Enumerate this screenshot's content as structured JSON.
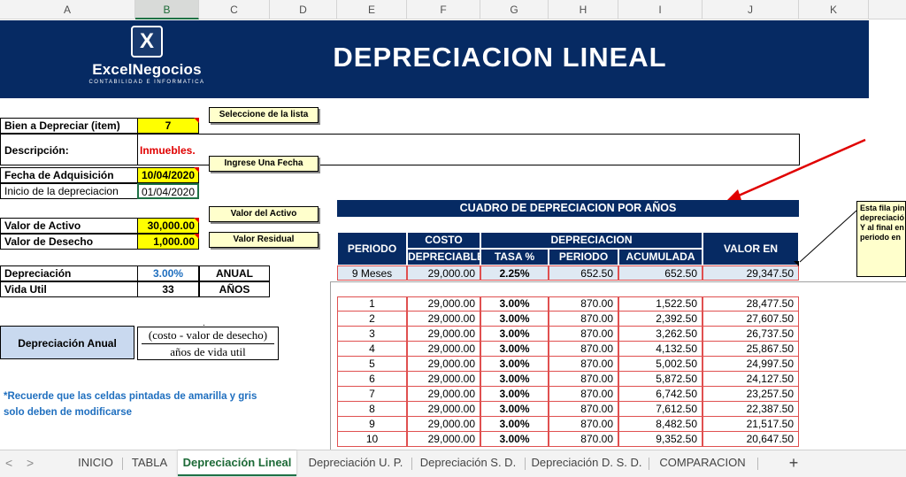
{
  "columns": [
    "A",
    "B",
    "C",
    "D",
    "E",
    "F",
    "G",
    "H",
    "I",
    "J",
    "K"
  ],
  "banner": {
    "logo_symbol": "X",
    "logo_name": "ExcelNegocios",
    "logo_subtitle": "CONTABILIDAD E INFORMATICA",
    "title": "DEPRECIACION LINEAL"
  },
  "inputs": {
    "bien_label": "Bien a Depreciar (item)",
    "bien_value": "7",
    "descripcion_label": "Descripción:",
    "descripcion_value": "Inmuebles.",
    "fecha_label": "Fecha de Adquisición",
    "fecha_value": "10/04/2020",
    "inicio_label": "Inicio de la depreciacion",
    "inicio_value": "01/04/2020",
    "valor_activo_label": "Valor de Activo",
    "valor_activo_value": "30,000.00",
    "valor_desecho_label": "Valor de Desecho",
    "valor_desecho_value": "1,000.00",
    "depreciacion_label": "Depreciación",
    "depreciacion_value": "3.00%",
    "depreciacion_unit": "ANUAL",
    "vida_label": "Vida Util",
    "vida_value": "33",
    "vida_unit": "AÑOS"
  },
  "tips": {
    "lista": "Seleccione de la lista",
    "fecha": "Ingrese Una Fecha",
    "activo": "Valor del Activo",
    "residual": "Valor Residual"
  },
  "formula": {
    "label": "Depreciación Anual",
    "numerator": "(costo - valor de desecho)",
    "denominator": "años de vida util"
  },
  "note": {
    "line1": "*Recuerde que las celdas pintadas de amarilla y gris",
    "line2": "solo deben de modificarse"
  },
  "table": {
    "title": "CUADRO DE DEPRECIACION POR AÑOS",
    "headers": {
      "periodo": "PERIODO",
      "costo": "COSTO",
      "depreciable": "DEPRECIABLE",
      "depreciacion": "DEPRECIACION",
      "tasa": "TASA %",
      "periodo_sub": "PERIODO",
      "acumulada": "ACUMULADA",
      "valor_libros": "VALOR EN LIBROS"
    },
    "first_row": [
      "9 Meses",
      "29,000.00",
      "2.25%",
      "652.50",
      "652.50",
      "29,347.50"
    ],
    "rows": [
      [
        "1",
        "29,000.00",
        "3.00%",
        "870.00",
        "1,522.50",
        "28,477.50"
      ],
      [
        "2",
        "29,000.00",
        "3.00%",
        "870.00",
        "2,392.50",
        "27,607.50"
      ],
      [
        "3",
        "29,000.00",
        "3.00%",
        "870.00",
        "3,262.50",
        "26,737.50"
      ],
      [
        "4",
        "29,000.00",
        "3.00%",
        "870.00",
        "4,132.50",
        "25,867.50"
      ],
      [
        "5",
        "29,000.00",
        "3.00%",
        "870.00",
        "5,002.50",
        "24,997.50"
      ],
      [
        "6",
        "29,000.00",
        "3.00%",
        "870.00",
        "5,872.50",
        "24,127.50"
      ],
      [
        "7",
        "29,000.00",
        "3.00%",
        "870.00",
        "6,742.50",
        "23,257.50"
      ],
      [
        "8",
        "29,000.00",
        "3.00%",
        "870.00",
        "7,612.50",
        "22,387.50"
      ],
      [
        "9",
        "29,000.00",
        "3.00%",
        "870.00",
        "8,482.50",
        "21,517.50"
      ],
      [
        "10",
        "29,000.00",
        "3.00%",
        "870.00",
        "9,352.50",
        "20,647.50"
      ]
    ]
  },
  "comment": {
    "lines": [
      "Esta fila pin",
      "depreciació",
      "Y al final en",
      "periodo en"
    ]
  },
  "tabs": {
    "nav_prev": "<",
    "nav_next": ">",
    "items": [
      "INICIO",
      "TABLA",
      "Depreciación Lineal",
      "Depreciación U. P.",
      "Depreciación S. D.",
      "Depreciación D. S. D.",
      "COMPARACION"
    ],
    "active": "Depreciación Lineal",
    "add": "+"
  },
  "colors": {
    "banner": "#062a63",
    "input_fill": "#ffff00",
    "first_row_fill": "#dfe9f3",
    "accent_red": "#e00000",
    "note_blue": "#1f6fbf",
    "tab_active": "#1e6b38"
  }
}
